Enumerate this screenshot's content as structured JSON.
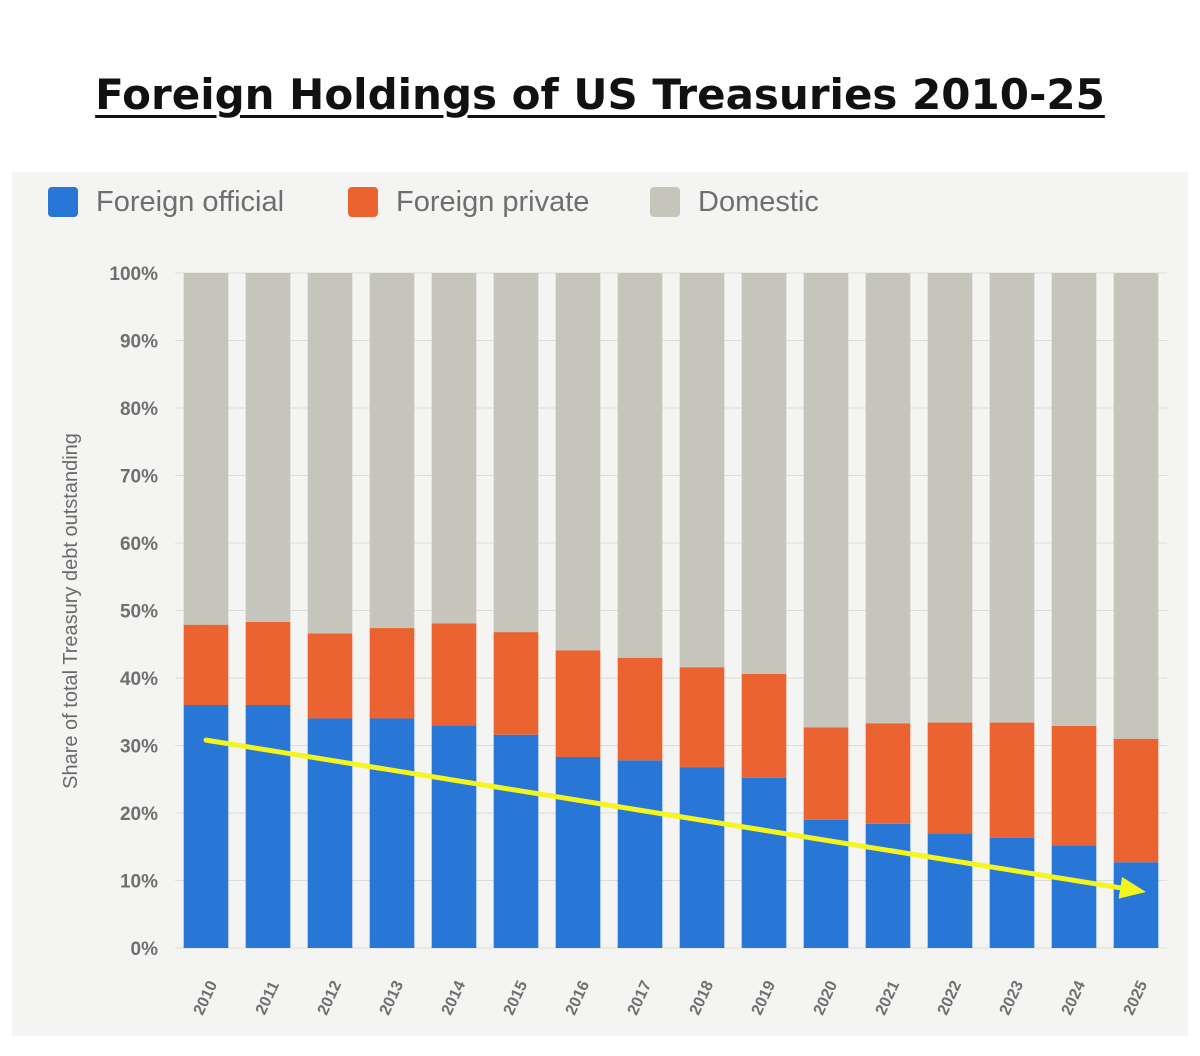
{
  "chart_data": {
    "type": "bar",
    "stacked": true,
    "title": "Foreign Holdings of US Treasuries 2010-25",
    "ylabel": "Share of total Treasury debt outstanding",
    "ylim": [
      0,
      100
    ],
    "yticks": [
      "0%",
      "10%",
      "20%",
      "30%",
      "40%",
      "50%",
      "60%",
      "70%",
      "80%",
      "90%",
      "100%"
    ],
    "categories": [
      "2010",
      "2011",
      "2012",
      "2013",
      "2014",
      "2015",
      "2016",
      "2017",
      "2018",
      "2019",
      "2020",
      "2021",
      "2022",
      "2023",
      "2024",
      "2025"
    ],
    "series": [
      {
        "name": "Foreign official",
        "color": "#2876d6",
        "values": [
          36,
          36,
          34,
          34,
          33,
          31.6,
          28.3,
          27.8,
          26.8,
          25.2,
          19,
          18.4,
          17,
          16.3,
          15.2,
          12.7
        ]
      },
      {
        "name": "Foreign private",
        "color": "#eb6330",
        "values": [
          11.9,
          12.3,
          12.6,
          13.4,
          15.1,
          15.2,
          15.8,
          15.2,
          14.8,
          15.4,
          13.7,
          14.9,
          16.4,
          17.1,
          17.7,
          18.3
        ]
      },
      {
        "name": "Domestic",
        "color": "#c6c5bc",
        "values": [
          52.1,
          51.7,
          53.4,
          52.6,
          51.9,
          53.2,
          55.9,
          57,
          58.4,
          59.4,
          67.3,
          66.7,
          66.6,
          66.6,
          67.1,
          69
        ]
      }
    ],
    "legend_position": "top-left",
    "grid": true,
    "annotation": {
      "type": "trend-arrow",
      "color": "#f5f51e",
      "from": {
        "x": "2010",
        "y": 30.8
      },
      "to": {
        "x": "2025",
        "y": 8.3
      }
    }
  }
}
